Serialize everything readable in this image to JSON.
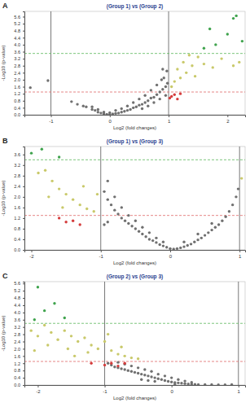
{
  "chart_data": [
    {
      "type": "scatter",
      "panel_label": "A",
      "title": "(Group 1) vs (Group 2)",
      "x_label": "Log2 (fold changes)",
      "y_label": "-Log10 (p-value)",
      "xlim": [
        -1.45,
        2.3
      ],
      "xticks": [
        -1,
        0,
        1,
        2
      ],
      "ylim": [
        0,
        5.9
      ],
      "yticks": [
        {
          "value": 0,
          "label": "0.0"
        },
        0.4,
        0.8,
        1.2,
        1.6,
        {
          "value": 2,
          "label": "2.0"
        },
        2.4,
        2.8,
        3.2,
        3.6,
        {
          "value": 4,
          "label": "4.0"
        },
        4.4,
        4.8,
        5.2,
        5.6
      ],
      "vlines": [
        -1,
        1
      ],
      "hlines": [
        {
          "value": 1.3,
          "color": "#e06a6a"
        },
        {
          "value": 3.5,
          "color": "#5cb85c"
        }
      ],
      "series": [
        {
          "color": "#707070",
          "x": [
            -0.65,
            -0.55,
            -0.45,
            -0.4,
            -0.3,
            -0.25,
            -0.2,
            -0.15,
            -0.1,
            -0.05,
            0,
            0.05,
            0.1,
            0.15,
            0.2,
            0.25,
            0.3,
            0.35,
            0.4,
            0.45,
            0.5,
            0.55,
            0.6,
            0.65,
            0.7,
            0.75,
            0.8,
            0.85,
            0.9,
            0.95,
            0.98,
            0.92,
            0.88,
            0.8,
            0.7,
            0.6,
            0.5,
            0.4,
            0.3,
            0.2,
            0.1,
            0.0,
            -0.1,
            -0.2,
            -0.3,
            0.55,
            0.65,
            0.75,
            0.85,
            0.95,
            0.97,
            0.9,
            -1.05,
            -1.35
          ],
          "values": [
            0.75,
            0.6,
            0.5,
            0.45,
            0.3,
            0.25,
            0.15,
            0.1,
            0.05,
            0.03,
            0.02,
            0.05,
            0.08,
            0.1,
            0.15,
            0.2,
            0.25,
            0.3,
            0.4,
            0.45,
            0.55,
            0.6,
            0.7,
            0.8,
            0.95,
            1.0,
            1.15,
            1.3,
            1.45,
            1.6,
            1.8,
            2.1,
            2.0,
            1.7,
            1.4,
            1.1,
            0.9,
            0.7,
            0.5,
            0.35,
            0.25,
            0.12,
            0.15,
            0.3,
            0.45,
            0.35,
            0.5,
            0.7,
            0.9,
            1.1,
            2.5,
            2.6,
            1.95,
            1.55
          ]
        },
        {
          "color": "#c9c96a",
          "x": [
            1.05,
            1.1,
            1.2,
            1.3,
            1.15,
            1.4,
            1.25,
            1.5,
            1.6,
            1.75,
            2.1,
            2.2,
            1.35,
            1.45,
            1.9
          ],
          "values": [
            1.6,
            1.9,
            2.1,
            2.4,
            2.6,
            2.8,
            3.0,
            3.3,
            2.9,
            2.7,
            2.8,
            3.0,
            3.4,
            2.2,
            3.2
          ]
        },
        {
          "color": "#d43c3c",
          "x": [
            1.02,
            1.05,
            1.1,
            1.15,
            1.2
          ],
          "values": [
            0.95,
            1.05,
            1.15,
            0.9,
            1.2
          ]
        },
        {
          "color": "#3fa34d",
          "x": [
            1.6,
            1.8,
            2.0,
            2.1,
            2.25,
            1.7,
            2.15
          ],
          "values": [
            3.8,
            4.0,
            4.6,
            5.5,
            4.2,
            4.9,
            5.65
          ]
        }
      ]
    },
    {
      "type": "scatter",
      "panel_label": "B",
      "title": "(Group 1) vs (Group 3)",
      "x_label": "Log2 (fold changes)",
      "y_label": "-Log10 (p-value)",
      "xlim": [
        -2.1,
        1.08
      ],
      "xticks": [
        -2,
        -1,
        0,
        1
      ],
      "ylim": [
        0,
        3.9
      ],
      "yticks": [
        {
          "value": 0,
          "label": "0.0"
        },
        0.4,
        0.8,
        1.2,
        1.6,
        {
          "value": 2,
          "label": "2.0"
        },
        2.4,
        2.8,
        3.2,
        3.6
      ],
      "vlines": [
        -1,
        1
      ],
      "hlines": [
        {
          "value": 1.3,
          "color": "#e06a6a"
        },
        {
          "value": 3.4,
          "color": "#5cb85c"
        }
      ],
      "series": [
        {
          "color": "#707070",
          "x": [
            -0.95,
            -0.9,
            -0.85,
            -0.8,
            -0.75,
            -0.7,
            -0.65,
            -0.6,
            -0.55,
            -0.5,
            -0.45,
            -0.4,
            -0.35,
            -0.3,
            -0.25,
            -0.2,
            -0.15,
            -0.1,
            -0.05,
            0,
            0.05,
            0.1,
            0.15,
            0.2,
            0.25,
            0.3,
            0.35,
            0.4,
            0.45,
            0.5,
            0.55,
            0.6,
            0.65,
            0.7,
            0.75,
            0.8,
            0.85,
            0.9,
            0.95,
            0.98,
            -0.9,
            -0.8,
            -0.7,
            -0.6,
            -0.5,
            -0.4,
            -0.3,
            -0.2,
            -0.1,
            0.2,
            0.4,
            0.6,
            -0.95,
            -0.9
          ],
          "values": [
            2.2,
            1.9,
            1.7,
            1.5,
            1.35,
            1.2,
            1.1,
            1.0,
            0.9,
            0.8,
            0.7,
            0.6,
            0.5,
            0.4,
            0.35,
            0.28,
            0.2,
            0.15,
            0.1,
            0.05,
            0.03,
            0.05,
            0.08,
            0.12,
            0.17,
            0.22,
            0.3,
            0.38,
            0.45,
            0.55,
            0.65,
            0.75,
            0.85,
            0.95,
            1.1,
            1.25,
            1.45,
            1.7,
            2.0,
            2.3,
            2.6,
            2.0,
            1.6,
            1.3,
            1.1,
            0.85,
            0.65,
            0.45,
            0.3,
            0.3,
            0.6,
            1.0,
            0.95,
            1.05
          ]
        },
        {
          "color": "#c9c96a",
          "x": [
            -1.9,
            -1.8,
            -1.7,
            -1.6,
            -1.5,
            -1.4,
            -1.3,
            -1.2,
            -1.1,
            -1.75,
            -1.55,
            -1.25,
            -1.05,
            1.03
          ],
          "values": [
            2.9,
            3.0,
            2.6,
            2.3,
            2.1,
            1.9,
            1.7,
            1.55,
            1.45,
            2.0,
            1.6,
            2.4,
            2.1,
            2.7
          ]
        },
        {
          "color": "#d43c3c",
          "x": [
            -1.6,
            -1.5,
            -1.4,
            -1.3
          ],
          "values": [
            1.2,
            1.05,
            1.1,
            0.95
          ]
        },
        {
          "color": "#3fa34d",
          "x": [
            -2.0,
            -1.85,
            -1.6
          ],
          "values": [
            3.65,
            3.8,
            3.5
          ]
        }
      ]
    },
    {
      "type": "scatter",
      "panel_label": "C",
      "title": "(Group 2) vs (Group 3)",
      "x_label": "Log2 (fold changes)",
      "y_label": "-Log10 (p-value)",
      "xlim": [
        -2.2,
        1.1
      ],
      "xticks": [
        -2,
        -1,
        0,
        1
      ],
      "ylim": [
        0,
        5.7
      ],
      "yticks": [
        {
          "value": 0,
          "label": "0.0"
        },
        0.4,
        0.8,
        1.2,
        1.6,
        {
          "value": 2,
          "label": "2.0"
        },
        2.4,
        2.8,
        3.2,
        3.6,
        {
          "value": 4,
          "label": "4.0"
        },
        4.4,
        4.8,
        5.2,
        5.6
      ],
      "vlines": [
        -1,
        1
      ],
      "hlines": [
        {
          "value": 1.3,
          "color": "#e06a6a"
        },
        {
          "value": 3.4,
          "color": "#5cb85c"
        }
      ],
      "series": [
        {
          "color": "#707070",
          "x": [
            -0.95,
            -0.9,
            -0.85,
            -0.8,
            -0.75,
            -0.7,
            -0.65,
            -0.6,
            -0.55,
            -0.5,
            -0.45,
            -0.4,
            -0.35,
            -0.3,
            -0.25,
            -0.2,
            -0.15,
            -0.1,
            -0.05,
            0,
            0.05,
            0.1,
            0.15,
            0.2,
            0.25,
            0.3,
            0.35,
            0.4,
            0.5,
            0.6,
            0.7,
            0.8,
            -0.8,
            -0.7,
            -0.6,
            -0.5,
            -0.4,
            -0.3,
            -0.2,
            -0.1,
            0,
            0.1,
            0.2,
            0.3,
            -0.45,
            -0.35,
            -0.25,
            0.05,
            0.9
          ],
          "values": [
            1.2,
            1.1,
            1.0,
            0.95,
            0.9,
            0.85,
            0.8,
            0.75,
            0.7,
            0.65,
            0.6,
            0.55,
            0.5,
            0.45,
            0.4,
            0.35,
            0.3,
            0.25,
            0.2,
            0.17,
            0.14,
            0.12,
            0.1,
            0.08,
            0.06,
            0.05,
            0.04,
            0.03,
            0.02,
            0.02,
            0.01,
            0.01,
            1.25,
            1.15,
            1.05,
            0.95,
            0.85,
            0.75,
            0.6,
            0.5,
            0.4,
            0.3,
            0.22,
            0.15,
            0.3,
            0.25,
            0.2,
            0.05,
            0.02
          ]
        },
        {
          "color": "#c9c96a",
          "x": [
            -2.1,
            -2.0,
            -1.9,
            -1.8,
            -1.7,
            -1.6,
            -1.5,
            -1.4,
            -1.3,
            -1.2,
            -1.1,
            -1.0,
            -0.9,
            -0.8,
            -0.7,
            -0.6,
            -0.5,
            -1.85,
            -1.55,
            -1.25,
            -0.95,
            -0.75,
            -2.05,
            -1.45
          ],
          "values": [
            3.0,
            2.7,
            3.3,
            2.9,
            2.5,
            3.0,
            2.7,
            2.4,
            2.6,
            2.2,
            2.0,
            2.4,
            1.9,
            1.7,
            1.6,
            1.5,
            1.45,
            2.2,
            2.0,
            1.8,
            2.8,
            2.1,
            1.9,
            1.6
          ]
        },
        {
          "color": "#d43c3c",
          "x": [
            -1.2,
            -1.0,
            -0.9,
            -0.8,
            -0.7
          ],
          "values": [
            1.2,
            1.1,
            1.2,
            1.05,
            1.2
          ]
        },
        {
          "color": "#3fa34d",
          "x": [
            -2.0,
            -2.05,
            -1.9,
            -1.75,
            -1.6
          ],
          "values": [
            5.4,
            3.6,
            4.1,
            4.5,
            3.7
          ]
        }
      ]
    }
  ]
}
